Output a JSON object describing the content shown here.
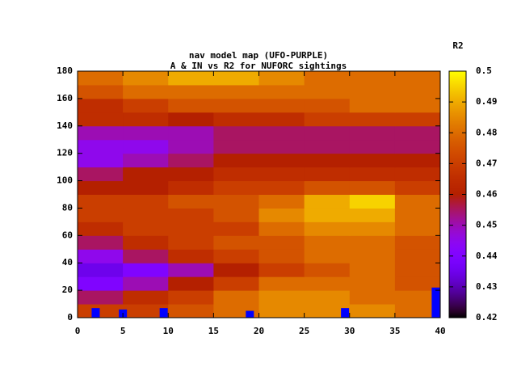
{
  "chart_data": {
    "type": "heatmap",
    "title": "nav model map (UFO-PURPLE)",
    "subtitle": "A & IN vs R2 for NUFORC sightings",
    "colorbar_label": "R2",
    "xbins": [
      0,
      5,
      10,
      15,
      20,
      25,
      30,
      35,
      40
    ],
    "ybins": [
      0,
      10,
      20,
      30,
      40,
      50,
      60,
      70,
      80,
      90,
      100,
      110,
      120,
      130,
      140,
      150,
      160,
      170,
      180
    ],
    "z": [
      [
        0.47,
        0.47,
        0.475,
        0.48,
        0.485,
        0.485,
        0.485,
        0.48
      ],
      [
        0.455,
        0.465,
        0.47,
        0.48,
        0.485,
        0.485,
        0.48,
        0.48
      ],
      [
        0.44,
        0.45,
        0.46,
        0.47,
        0.48,
        0.48,
        0.48,
        0.475
      ],
      [
        0.435,
        0.44,
        0.45,
        0.46,
        0.47,
        0.475,
        0.48,
        0.475
      ],
      [
        0.445,
        0.455,
        0.465,
        0.47,
        0.475,
        0.48,
        0.48,
        0.475
      ],
      [
        0.455,
        0.465,
        0.47,
        0.475,
        0.475,
        0.48,
        0.48,
        0.475
      ],
      [
        0.465,
        0.47,
        0.47,
        0.47,
        0.48,
        0.485,
        0.485,
        0.48
      ],
      [
        0.47,
        0.47,
        0.47,
        0.475,
        0.485,
        0.49,
        0.49,
        0.48
      ],
      [
        0.47,
        0.47,
        0.475,
        0.475,
        0.48,
        0.49,
        0.495,
        0.48
      ],
      [
        0.46,
        0.46,
        0.465,
        0.47,
        0.47,
        0.475,
        0.475,
        0.47
      ],
      [
        0.455,
        0.46,
        0.46,
        0.465,
        0.465,
        0.465,
        0.465,
        0.465
      ],
      [
        0.445,
        0.45,
        0.455,
        0.46,
        0.46,
        0.46,
        0.46,
        0.46
      ],
      [
        0.445,
        0.445,
        0.45,
        0.455,
        0.455,
        0.455,
        0.455,
        0.455
      ],
      [
        0.45,
        0.45,
        0.45,
        0.455,
        0.455,
        0.455,
        0.455,
        0.455
      ],
      [
        0.465,
        0.465,
        0.46,
        0.465,
        0.465,
        0.47,
        0.47,
        0.47
      ],
      [
        0.465,
        0.47,
        0.475,
        0.475,
        0.475,
        0.475,
        0.48,
        0.48
      ],
      [
        0.475,
        0.48,
        0.48,
        0.48,
        0.48,
        0.48,
        0.48,
        0.48
      ],
      [
        0.48,
        0.485,
        0.49,
        0.49,
        0.485,
        0.48,
        0.48,
        0.48
      ]
    ],
    "bars": {
      "color": "#0000ff",
      "x": [
        2,
        5,
        9.5,
        19,
        29.5,
        39.5
      ],
      "values": [
        7,
        6,
        7,
        5,
        7,
        22
      ]
    },
    "xlim": [
      0,
      40
    ],
    "xticks": [
      0,
      5,
      10,
      15,
      20,
      25,
      30,
      35,
      40
    ],
    "ylim": [
      0,
      180
    ],
    "yticks": [
      0,
      20,
      40,
      60,
      80,
      100,
      120,
      140,
      160,
      180
    ],
    "zlim": [
      0.42,
      0.5
    ],
    "zticks": [
      0.42,
      0.43,
      0.44,
      0.45,
      0.46,
      0.47,
      0.48,
      0.49,
      0.5
    ]
  }
}
